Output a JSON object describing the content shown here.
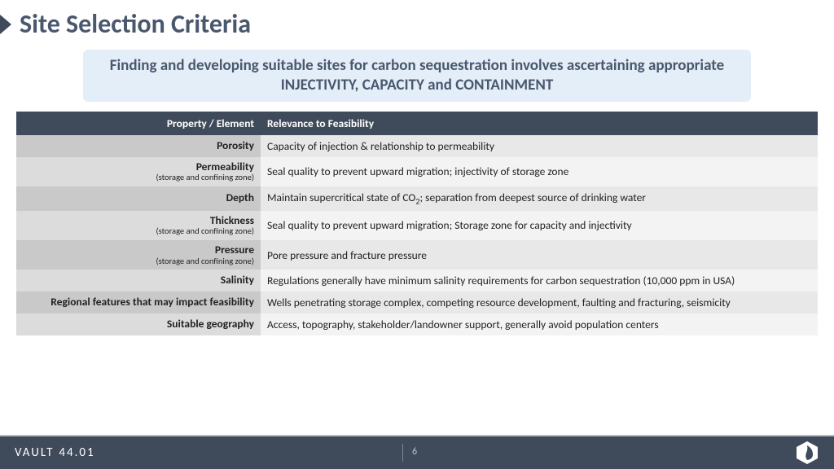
{
  "title": "Site Selection Criteria",
  "subtitle": "Finding and developing suitable sites for carbon sequestration involves ascertaining appropriate INJECTIVITY, CAPACITY and CONTAINMENT",
  "table": {
    "header_prop": "Property / Element",
    "header_rel": "Relevance to Feasibility",
    "rows": [
      {
        "prop": "Porosity",
        "sub": "",
        "rel": "Capacity of injection & relationship to permeability"
      },
      {
        "prop": "Permeability",
        "sub": "(storage and confining zone)",
        "rel": "Seal quality to prevent upward migration; injectivity of storage zone"
      },
      {
        "prop": "Depth",
        "sub": "",
        "rel": "Maintain supercritical state of CO₂; separation from deepest source of drinking water"
      },
      {
        "prop": "Thickness",
        "sub": "(storage and confining zone)",
        "rel": "Seal quality to prevent upward migration; Storage zone for capacity and injectivity"
      },
      {
        "prop": "Pressure",
        "sub": "(storage and confining zone)",
        "rel": "Pore pressure and fracture pressure"
      },
      {
        "prop": "Salinity",
        "sub": "",
        "rel": "Regulations generally have minimum salinity requirements for carbon sequestration (10,000 ppm in USA)"
      },
      {
        "prop": "Regional features that may impact feasibility",
        "sub": "",
        "rel": "Wells penetrating storage complex, competing resource development, faulting and fracturing, seismicity"
      },
      {
        "prop": "Suitable geography",
        "sub": "",
        "rel": "Access, topography, stakeholder/landowner support, generally avoid population centers"
      }
    ]
  },
  "brand1": "VAULT",
  "brand2": "44.01",
  "page_number": "6",
  "colors": {
    "header_bg": "#3f4a5a",
    "title_color": "#4a586e",
    "subtitle_bg": "#e4eef8",
    "row_a_prop": "#c9c9c9",
    "row_a_rel": "#e8e8e8",
    "row_b_prop": "#dcdcdc",
    "row_b_rel": "#f3f3f3"
  }
}
